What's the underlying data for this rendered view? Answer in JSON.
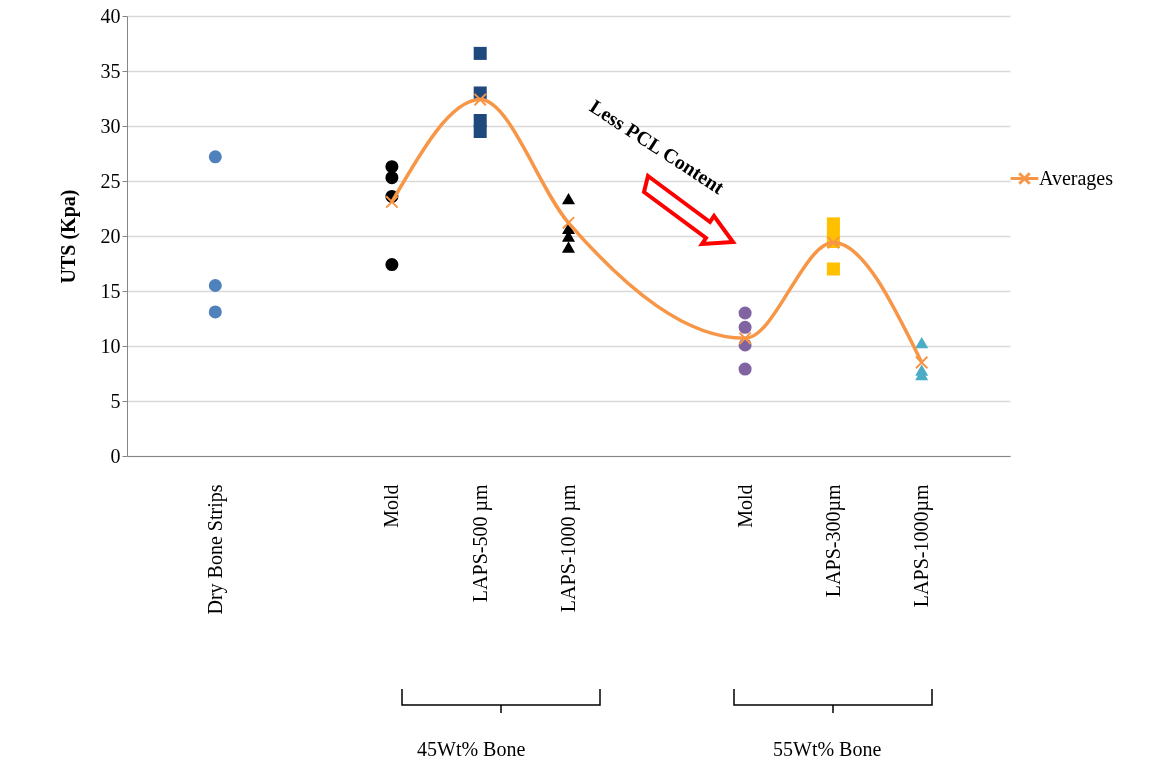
{
  "chart_data": {
    "type": "scatter",
    "ylabel": "UTS (Kpa)",
    "categories": [
      "Dry Bone Strips",
      null,
      "Mold",
      "LAPS-500 µm",
      "LAPS-1000 µm",
      null,
      "Mold",
      "LAPS-300µm",
      "LAPS-1000µm"
    ],
    "ylim": [
      0,
      40
    ],
    "yticks": [
      0,
      5,
      10,
      15,
      20,
      25,
      30,
      35,
      40
    ],
    "grid": "y",
    "legend": "right",
    "series": [
      {
        "marker": "circle",
        "color": "#4f81bd",
        "values": [
          27.2,
          null,
          null,
          null,
          null,
          null,
          null,
          null,
          null
        ]
      },
      {
        "marker": "circle",
        "color": "#4f81bd",
        "values": [
          15.5,
          null,
          null,
          null,
          null,
          null,
          null,
          null,
          null
        ]
      },
      {
        "marker": "circle",
        "color": "#4f81bd",
        "values": [
          13.1,
          null,
          null,
          null,
          null,
          null,
          null,
          null,
          null
        ]
      },
      {
        "marker": "circle",
        "color": "#000000",
        "values": [
          null,
          null,
          26.3,
          null,
          null,
          null,
          null,
          null,
          null
        ]
      },
      {
        "marker": "circle",
        "color": "#000000",
        "values": [
          null,
          null,
          25.3,
          null,
          null,
          null,
          null,
          null,
          null
        ]
      },
      {
        "marker": "circle",
        "color": "#000000",
        "values": [
          null,
          null,
          23.6,
          null,
          null,
          null,
          null,
          null,
          null
        ]
      },
      {
        "marker": "circle",
        "color": "#000000",
        "values": [
          null,
          null,
          17.4,
          null,
          null,
          null,
          null,
          null,
          null
        ]
      },
      {
        "marker": "square",
        "color": "#1f497d",
        "values": [
          null,
          null,
          null,
          36.6,
          null,
          null,
          null,
          null,
          null
        ]
      },
      {
        "marker": "square",
        "color": "#1f497d",
        "values": [
          null,
          null,
          null,
          33.0,
          null,
          null,
          null,
          null,
          null
        ]
      },
      {
        "marker": "square",
        "color": "#1f497d",
        "values": [
          null,
          null,
          null,
          30.5,
          null,
          null,
          null,
          null,
          null
        ]
      },
      {
        "marker": "square",
        "color": "#1f497d",
        "values": [
          null,
          null,
          null,
          29.5,
          null,
          null,
          null,
          null,
          null
        ]
      },
      {
        "marker": "triangle",
        "color": "#000000",
        "values": [
          null,
          null,
          null,
          null,
          23.4,
          null,
          null,
          null,
          null
        ]
      },
      {
        "marker": "triangle",
        "color": "#000000",
        "values": [
          null,
          null,
          null,
          null,
          20.7,
          null,
          null,
          null,
          null
        ]
      },
      {
        "marker": "triangle",
        "color": "#000000",
        "values": [
          null,
          null,
          null,
          null,
          20.0,
          null,
          null,
          null,
          null
        ]
      },
      {
        "marker": "triangle",
        "color": "#000000",
        "values": [
          null,
          null,
          null,
          null,
          19.0,
          null,
          null,
          null,
          null
        ]
      },
      {
        "marker": "circle",
        "color": "#8064a2",
        "values": [
          null,
          null,
          null,
          null,
          null,
          null,
          13.0,
          null,
          null
        ]
      },
      {
        "marker": "circle",
        "color": "#8064a2",
        "values": [
          null,
          null,
          null,
          null,
          null,
          null,
          11.7,
          null,
          null
        ]
      },
      {
        "marker": "circle",
        "color": "#8064a2",
        "values": [
          null,
          null,
          null,
          null,
          null,
          null,
          10.1,
          null,
          null
        ]
      },
      {
        "marker": "circle",
        "color": "#8064a2",
        "values": [
          null,
          null,
          null,
          null,
          null,
          null,
          7.9,
          null,
          null
        ]
      },
      {
        "marker": "square",
        "color": "#ffc000",
        "values": [
          null,
          null,
          null,
          null,
          null,
          null,
          null,
          21.1,
          null
        ]
      },
      {
        "marker": "square",
        "color": "#ffc000",
        "values": [
          null,
          null,
          null,
          null,
          null,
          null,
          null,
          20.0,
          null
        ]
      },
      {
        "marker": "square",
        "color": "#ffc000",
        "values": [
          null,
          null,
          null,
          null,
          null,
          null,
          null,
          19.5,
          null
        ]
      },
      {
        "marker": "square",
        "color": "#ffc000",
        "values": [
          null,
          null,
          null,
          null,
          null,
          null,
          null,
          17.0,
          null
        ]
      },
      {
        "marker": "triangle",
        "color": "#4bacc6",
        "values": [
          null,
          null,
          null,
          null,
          null,
          null,
          null,
          null,
          10.3
        ]
      },
      {
        "marker": "triangle",
        "color": "#4bacc6",
        "values": [
          null,
          null,
          null,
          null,
          null,
          null,
          null,
          null,
          7.8
        ]
      },
      {
        "marker": "triangle",
        "color": "#4bacc6",
        "values": [
          null,
          null,
          null,
          null,
          null,
          null,
          null,
          null,
          7.4
        ]
      },
      {
        "type": "line",
        "name": "Averages",
        "marker": "cross",
        "color": "#f79646",
        "values": [
          null,
          null,
          23.1,
          32.4,
          21.2,
          null,
          10.7,
          19.4,
          8.5
        ]
      }
    ],
    "annotations": [
      "Less PCL Content",
      "45Wt% Bone",
      "55Wt% Bone"
    ]
  }
}
